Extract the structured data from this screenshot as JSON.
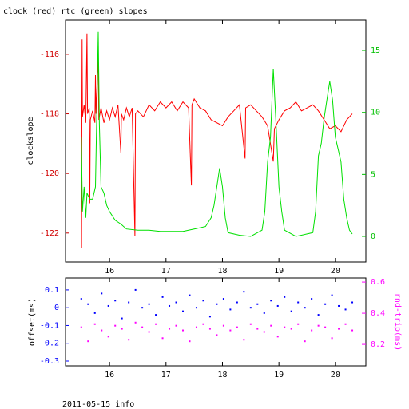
{
  "chart_data": [
    {
      "type": "line",
      "title": "clock (red) rtc (green) slopes",
      "ylabel": "clockslope",
      "xlim": [
        15.22,
        20.54
      ],
      "xticks": [
        16,
        17,
        18,
        19,
        20
      ],
      "ylim": [
        -122.97,
        -114.85
      ],
      "yticks": [
        -116,
        -118,
        -120,
        -122
      ],
      "y2lim": [
        -2.06,
        17.45
      ],
      "y2ticks": [
        0,
        5,
        10,
        15
      ],
      "left_color": "#d00000",
      "right_color": "#00c000",
      "series": [
        {
          "name": "clock",
          "color": "#ff0000",
          "x": [
            15.5,
            15.505,
            15.51,
            15.515,
            15.52,
            15.55,
            15.58,
            15.6,
            15.61,
            15.64,
            15.65,
            15.66,
            15.7,
            15.74,
            15.75,
            15.76,
            15.8,
            15.81,
            15.85,
            15.9,
            15.95,
            16.0,
            16.05,
            16.1,
            16.15,
            16.2,
            16.21,
            16.25,
            16.3,
            16.35,
            16.4,
            16.45,
            16.46,
            16.5,
            16.6,
            16.7,
            16.8,
            16.9,
            17.0,
            17.1,
            17.2,
            17.3,
            17.4,
            17.45,
            17.46,
            17.5,
            17.6,
            17.7,
            17.8,
            17.9,
            18.0,
            18.1,
            18.2,
            18.3,
            18.4,
            18.41,
            18.5,
            18.6,
            18.7,
            18.8,
            18.9,
            18.92,
            19.0,
            19.1,
            19.2,
            19.3,
            19.4,
            19.5,
            19.6,
            19.7,
            19.8,
            19.9,
            20.0,
            20.1,
            20.2,
            20.3
          ],
          "values": [
            -118,
            -122.5,
            -117.8,
            -115.5,
            -118.1,
            -117.7,
            -118.3,
            -115.3,
            -118,
            -117.8,
            -121,
            -118.2,
            -117.9,
            -118.3,
            -116.7,
            -118,
            -116,
            -118.2,
            -117.8,
            -118.3,
            -117.9,
            -118.2,
            -117.8,
            -118.1,
            -117.7,
            -119.3,
            -118,
            -118.2,
            -117.8,
            -118.1,
            -117.8,
            -122.1,
            -118,
            -117.9,
            -118.1,
            -117.7,
            -117.9,
            -117.6,
            -117.8,
            -117.6,
            -117.9,
            -117.6,
            -117.8,
            -120.4,
            -117.7,
            -117.5,
            -117.8,
            -117.9,
            -118.2,
            -118.3,
            -118.4,
            -118.1,
            -117.9,
            -117.7,
            -119.5,
            -117.8,
            -117.7,
            -117.9,
            -118.1,
            -118.4,
            -119.6,
            -118.5,
            -118.2,
            -117.9,
            -117.8,
            -117.6,
            -117.9,
            -117.8,
            -117.7,
            -117.9,
            -118.2,
            -118.5,
            -118.4,
            -118.6,
            -118.2,
            -118.0
          ]
        },
        {
          "name": "rtc",
          "color": "#00e000",
          "axis": "y2",
          "x": [
            15.5,
            15.52,
            15.55,
            15.58,
            15.6,
            15.65,
            15.7,
            15.75,
            15.8,
            15.82,
            15.85,
            15.9,
            15.95,
            16.0,
            16.1,
            16.2,
            16.3,
            16.5,
            16.7,
            16.9,
            17.1,
            17.3,
            17.5,
            17.7,
            17.8,
            17.85,
            17.9,
            17.95,
            18.0,
            18.05,
            18.1,
            18.3,
            18.5,
            18.7,
            18.75,
            18.8,
            18.85,
            18.9,
            18.95,
            19.0,
            19.05,
            19.1,
            19.3,
            19.5,
            19.6,
            19.65,
            19.7,
            19.75,
            19.8,
            19.85,
            19.9,
            19.95,
            20.0,
            20.05,
            20.1,
            20.15,
            20.2,
            20.25,
            20.3
          ],
          "values": [
            8,
            2,
            4,
            1.5,
            3.5,
            3,
            3,
            4,
            16.5,
            9,
            4,
            3.5,
            2.5,
            2,
            1.3,
            1,
            0.6,
            0.5,
            0.5,
            0.4,
            0.4,
            0.4,
            0.6,
            0.8,
            1.5,
            2.5,
            4,
            5.5,
            4,
            1.5,
            0.3,
            0.1,
            0,
            0.5,
            2,
            6,
            8,
            13.5,
            9,
            4,
            2,
            0.5,
            0,
            0.2,
            0.3,
            2,
            6.5,
            7.5,
            9.5,
            11,
            12.5,
            11,
            8,
            7,
            6,
            3,
            1.5,
            0.5,
            0.2
          ]
        }
      ]
    },
    {
      "type": "scatter",
      "ylabel": "offset(ms)",
      "y2label": "rnd-trip(ms)",
      "xlim": [
        15.22,
        20.54
      ],
      "xticks": [
        16,
        17,
        18,
        19,
        20
      ],
      "ylim": [
        -0.327,
        0.167
      ],
      "yticks": [
        0.1,
        0,
        -0.1,
        -0.2,
        -0.3
      ],
      "y2lim": [
        0.062,
        0.626
      ],
      "y2ticks": [
        0.2,
        0.4,
        0.6
      ],
      "left_color": "#0000ff",
      "right_color": "#ff00ff",
      "x": [
        15.5,
        15.62,
        15.74,
        15.86,
        15.98,
        16.1,
        16.22,
        16.34,
        16.46,
        16.58,
        16.7,
        16.82,
        16.94,
        17.06,
        17.18,
        17.3,
        17.42,
        17.54,
        17.66,
        17.78,
        17.9,
        18.02,
        18.14,
        18.26,
        18.38,
        18.5,
        18.62,
        18.74,
        18.86,
        18.98,
        19.1,
        19.22,
        19.34,
        19.46,
        19.58,
        19.7,
        19.82,
        19.94,
        20.06,
        20.18,
        20.3
      ],
      "series": [
        {
          "name": "offset",
          "color": "#0000ff",
          "values": [
            0.05,
            0.02,
            -0.03,
            0.08,
            0.01,
            0.04,
            -0.06,
            0.03,
            0.1,
            0.0,
            0.02,
            -0.04,
            0.06,
            0.01,
            0.03,
            -0.02,
            0.07,
            0.0,
            0.04,
            -0.05,
            0.02,
            0.05,
            -0.01,
            0.03,
            0.09,
            0.0,
            0.02,
            -0.03,
            0.04,
            0.01,
            0.06,
            -0.02,
            0.03,
            0.0,
            0.05,
            -0.04,
            0.02,
            0.07,
            0.01,
            -0.01,
            0.03
          ]
        },
        {
          "name": "rnd-trip",
          "color": "#ff00ff",
          "axis": "y2",
          "values": [
            0.31,
            0.22,
            0.33,
            0.29,
            0.25,
            0.32,
            0.3,
            0.23,
            0.34,
            0.31,
            0.28,
            0.33,
            0.24,
            0.3,
            0.32,
            0.29,
            0.22,
            0.31,
            0.33,
            0.3,
            0.26,
            0.32,
            0.29,
            0.31,
            0.23,
            0.33,
            0.3,
            0.28,
            0.32,
            0.25,
            0.31,
            0.3,
            0.33,
            0.22,
            0.29,
            0.32,
            0.31,
            0.24,
            0.3,
            0.33,
            0.29
          ]
        }
      ]
    }
  ],
  "footer": "2011-05-15 info"
}
